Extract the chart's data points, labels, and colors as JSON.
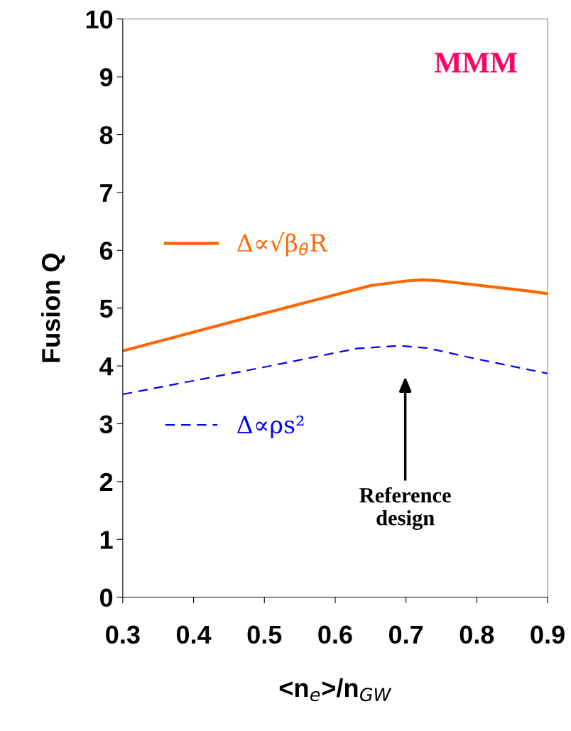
{
  "chart_data": {
    "type": "line",
    "xlabel": "<n$_{e}$>/n$_{GW}$",
    "ylabel": "Fusion Q",
    "xlim": [
      0.3,
      0.9
    ],
    "xticks": [
      0.3,
      0.4,
      0.5,
      0.6,
      0.7,
      0.8,
      0.9
    ],
    "ylim": [
      0,
      10
    ],
    "yticks": [
      0,
      1,
      2,
      3,
      4,
      5,
      6,
      7,
      8,
      9,
      10
    ],
    "grid": false,
    "legend": "left",
    "marker": "none",
    "series": [
      {
        "name": "Δ∝√β$_{θ}$R",
        "color": "#ff6600",
        "line_style": "solid",
        "x": [
          0.3,
          0.5,
          0.65,
          0.7,
          0.724,
          0.75,
          0.877,
          0.9
        ],
        "values": [
          4.26,
          4.91,
          5.39,
          5.47,
          5.49,
          5.47,
          5.29,
          5.25
        ]
      },
      {
        "name": "Δ∝ρs²",
        "color": "#0000ff",
        "line_style": "dashed",
        "x": [
          0.3,
          0.5,
          0.63,
          0.69,
          0.7,
          0.73,
          0.8,
          0.9
        ],
        "values": [
          3.51,
          3.98,
          4.3,
          4.35,
          4.34,
          4.31,
          4.12,
          3.87
        ]
      }
    ],
    "annotations": [
      "MMM",
      "Reference\ndesign"
    ]
  }
}
